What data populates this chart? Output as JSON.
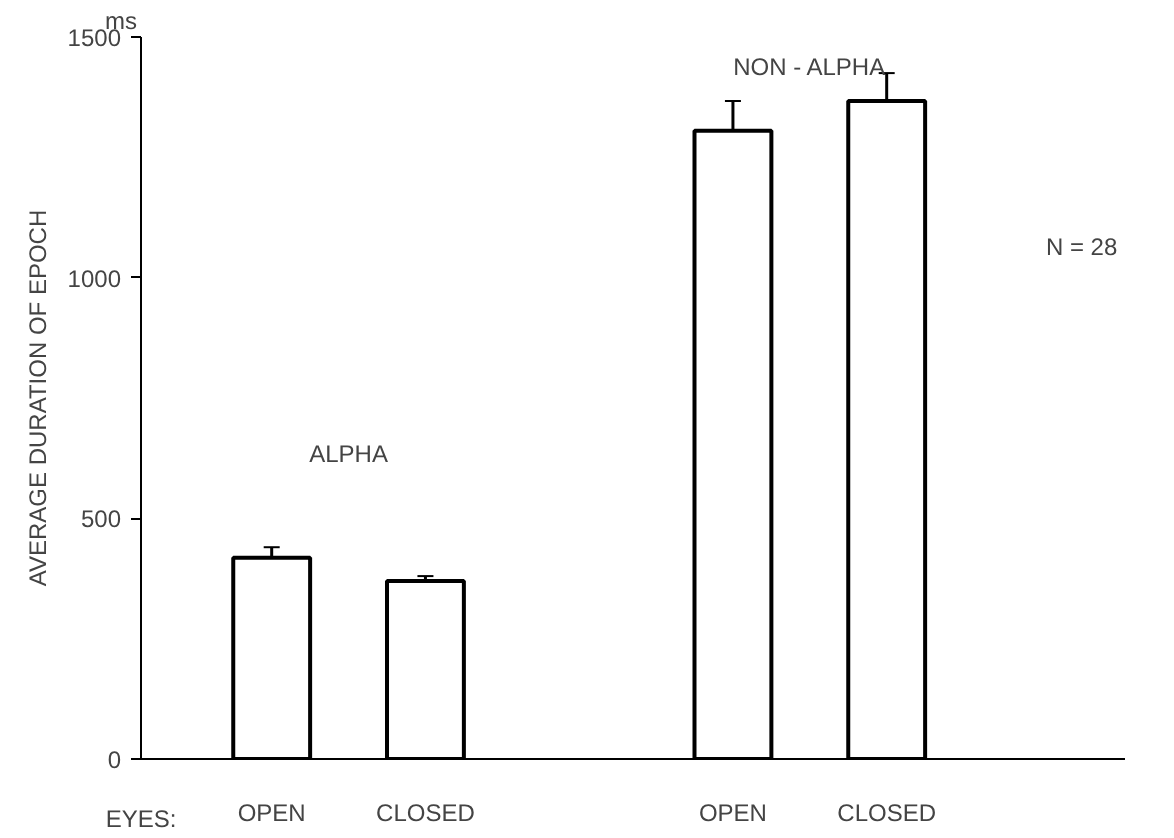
{
  "chart_data": {
    "type": "bar",
    "categories": [
      "OPEN",
      "CLOSED",
      null,
      "OPEN",
      "CLOSED"
    ],
    "values": [
      418,
      370,
      null,
      1305,
      1367
    ],
    "errors": [
      22,
      10,
      null,
      62,
      58
    ],
    "color": "#ffffff",
    "xlabel": "EYES:",
    "ylabel": "AVERAGE DURATION OF EPOCH",
    "annotations": [
      "ms",
      "ALPHA",
      "NON - ALPHA",
      "N = 28"
    ],
    "ylim": [
      0,
      1500
    ],
    "yticks": [
      0,
      500,
      1000,
      1500
    ],
    "grid": false
  }
}
